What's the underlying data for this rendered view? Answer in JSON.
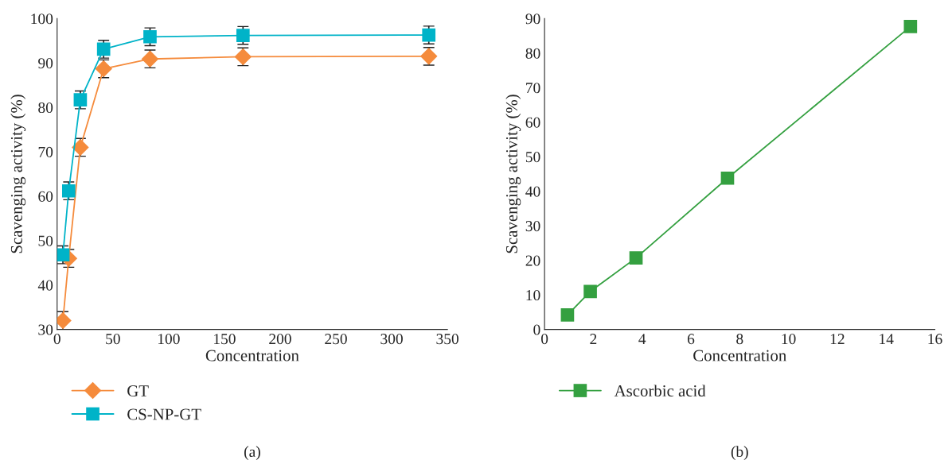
{
  "chart_data": [
    {
      "type": "line",
      "xlabel": "Concentration",
      "ylabel": "Scavenging activity (%)",
      "xlim": [
        0,
        350
      ],
      "xticks": [
        0,
        50,
        100,
        150,
        200,
        250,
        300,
        350
      ],
      "ylim": [
        30,
        100
      ],
      "yticks": [
        30,
        40,
        50,
        60,
        70,
        80,
        90,
        100
      ],
      "x": [
        5.2,
        10.4,
        20.8,
        41.7,
        83.3,
        166.7,
        333.3
      ],
      "legend": "bottom left",
      "grid": false,
      "annotations": [
        "(a)"
      ],
      "series": [
        {
          "name": "GT",
          "color": "#f58b3c",
          "marker": "diamond",
          "values": [
            32.0,
            46.0,
            71.0,
            88.7,
            90.9,
            91.4,
            91.5
          ],
          "errors": [
            2.0,
            2.0,
            2.0,
            2.0,
            2.0,
            2.0,
            2.0
          ]
        },
        {
          "name": "CS-NP-GT",
          "color": "#00b3c8",
          "marker": "square",
          "values": [
            46.8,
            61.2,
            81.7,
            93.1,
            95.9,
            96.2,
            96.3
          ],
          "errors": [
            2.0,
            2.0,
            2.0,
            2.0,
            2.0,
            2.0,
            2.0
          ]
        }
      ]
    },
    {
      "type": "line",
      "xlabel": "Concentration",
      "ylabel": "Scavenging activity (%)",
      "xlim": [
        0,
        16
      ],
      "xticks": [
        0,
        2,
        4,
        6,
        8,
        10,
        12,
        14,
        16
      ],
      "ylim": [
        0,
        90
      ],
      "yticks": [
        0,
        10,
        20,
        30,
        40,
        50,
        60,
        70,
        80,
        90
      ],
      "x": [
        0.94,
        1.875,
        3.75,
        7.5,
        15
      ],
      "legend": "bottom left",
      "grid": false,
      "annotations": [
        "(b)"
      ],
      "series": [
        {
          "name": "Ascorbic acid",
          "color": "#34a040",
          "marker": "square",
          "values": [
            4.2,
            11.0,
            20.7,
            43.8,
            87.7
          ]
        }
      ]
    }
  ]
}
